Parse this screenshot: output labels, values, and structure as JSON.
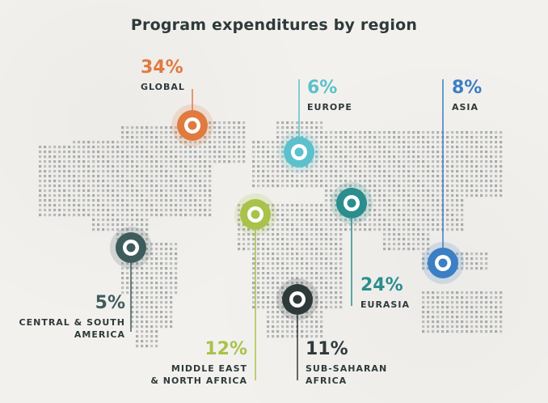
{
  "title": "Program expenditures by region",
  "colors": {
    "global": "#e07a3f",
    "europe": "#5cc1cc",
    "asia": "#3b7fc4",
    "eurasia": "#2a8e8e",
    "mena": "#a8c24a",
    "central_south_america": "#3f5c5c",
    "sub_saharan_africa": "#2e3a3a"
  },
  "regions": [
    {
      "key": "global",
      "pct": "34%",
      "name": "GLOBAL",
      "value": 34
    },
    {
      "key": "europe",
      "pct": "6%",
      "name": "EUROPE",
      "value": 6
    },
    {
      "key": "asia",
      "pct": "8%",
      "name": "ASIA",
      "value": 8
    },
    {
      "key": "eurasia",
      "pct": "24%",
      "name": "EURASIA",
      "value": 24
    },
    {
      "key": "central_south_america",
      "pct": "5%",
      "name_line1": "CENTRAL & SOUTH",
      "name_line2": "AMERICA",
      "value": 5
    },
    {
      "key": "mena",
      "pct": "12%",
      "name_line1": "MIDDLE EAST",
      "name_line2": "& NORTH AFRICA",
      "value": 12
    },
    {
      "key": "sub_saharan_africa",
      "pct": "11%",
      "name_line1": "SUB-SAHARAN",
      "name_line2": "AFRICA",
      "value": 11
    }
  ]
}
